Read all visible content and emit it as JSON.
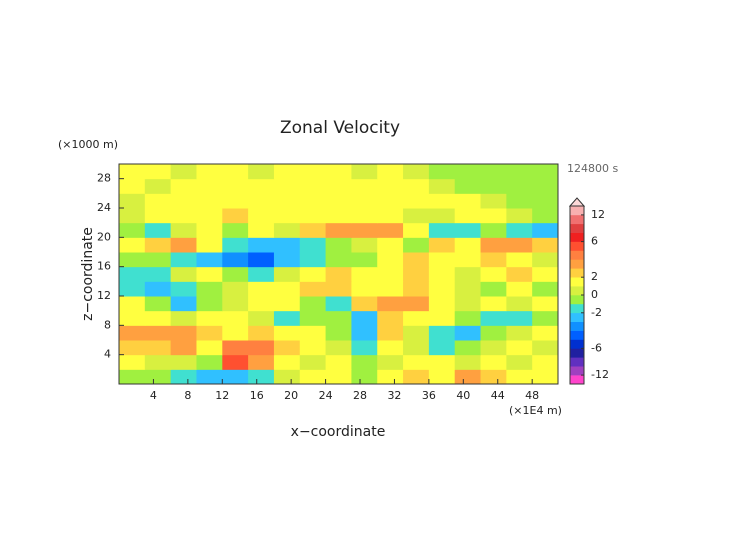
{
  "chart_data": {
    "type": "heatmap",
    "title": "Zonal Velocity",
    "y_unit": "(×1000 m)",
    "x_unit": "(×1E4 m)",
    "time_label": "124800 s",
    "xlabel": "x−coordinate",
    "ylabel": "z−coordinate",
    "xlim": [
      0,
      51
    ],
    "ylim": [
      0,
      30
    ],
    "xticks": [
      4,
      8,
      12,
      16,
      20,
      24,
      28,
      32,
      36,
      40,
      44,
      48
    ],
    "yticks": [
      4,
      8,
      12,
      16,
      20,
      24,
      28
    ],
    "x_edges": [
      0,
      3,
      6,
      9,
      12,
      15,
      18,
      21,
      24,
      27,
      30,
      33,
      36,
      39,
      42,
      45,
      48,
      51
    ],
    "z_edges": [
      0,
      2,
      4,
      6,
      8,
      10,
      12,
      14,
      16,
      18,
      20,
      22,
      24,
      26,
      28,
      30
    ],
    "values": [
      [
        -1,
        -1,
        -1.5,
        -2.5,
        -3,
        -1.5,
        0.5,
        1,
        1,
        -0.5,
        1,
        2,
        1,
        3,
        2.5,
        1,
        1
      ],
      [
        1,
        0.5,
        0.5,
        -1,
        5,
        3,
        1,
        0.5,
        1,
        -1,
        0.5,
        1,
        1,
        0.5,
        1,
        0.5,
        1
      ],
      [
        2,
        2.5,
        3,
        1.5,
        4,
        4.5,
        2,
        1,
        0.5,
        -2,
        1,
        0.5,
        -2,
        -1,
        0.5,
        1,
        0.5
      ],
      [
        3,
        3.5,
        3,
        2.5,
        1,
        2,
        1,
        1.5,
        -1,
        -3,
        2,
        0.5,
        -1.5,
        -2.5,
        -1,
        0.5,
        1
      ],
      [
        1,
        1,
        0.5,
        1,
        1,
        0.5,
        -1.5,
        -0.5,
        -0.5,
        -3,
        2.5,
        1,
        1,
        -1,
        -2,
        -1.5,
        -0.5
      ],
      [
        1,
        -1,
        -2.5,
        -1,
        0.5,
        1,
        1,
        -1,
        -1.5,
        2,
        3,
        3,
        1,
        0.5,
        1,
        0.5,
        1
      ],
      [
        -2,
        -3,
        -2,
        -1,
        0.5,
        1,
        1,
        2,
        2,
        1,
        1,
        2,
        1,
        0.5,
        -1,
        1,
        -0.5
      ],
      [
        -1.5,
        -2,
        0.5,
        1,
        -1,
        -2,
        0.5,
        1.5,
        2,
        1,
        1,
        2.5,
        1,
        0.5,
        1,
        2.5,
        1.5
      ],
      [
        -1,
        -0.5,
        -1.5,
        -2.5,
        -4,
        -5,
        -3,
        -2,
        -1,
        -0.5,
        1,
        2,
        1.5,
        1,
        2,
        1,
        0.5
      ],
      [
        1,
        2.5,
        3.5,
        1,
        -2,
        -2.5,
        -3,
        -1.5,
        -1,
        0.5,
        1,
        -1,
        2,
        1,
        3.5,
        3,
        2
      ],
      [
        -0.5,
        -1.5,
        0.5,
        1,
        -0.5,
        1,
        0.5,
        2,
        3,
        3.5,
        3,
        1,
        -1.5,
        -2,
        -1,
        -2,
        -2.5
      ],
      [
        0.5,
        1,
        1,
        1.5,
        2.5,
        1,
        1,
        1,
        1,
        1,
        1,
        0.5,
        0.5,
        1,
        1,
        0.5,
        -0.5
      ],
      [
        0.5,
        1,
        1,
        1.5,
        1,
        1,
        1.5,
        1,
        1,
        1,
        1,
        1,
        1,
        1,
        0.5,
        -0.5,
        -0.5
      ],
      [
        1,
        0.5,
        1,
        1,
        1,
        1,
        1,
        1.5,
        1,
        1,
        1,
        1,
        0.5,
        -0.5,
        -0.5,
        -0.5,
        -0.5
      ],
      [
        1,
        1,
        0.5,
        1,
        1,
        0.5,
        1,
        1,
        1,
        0.5,
        1,
        0.5,
        -0.5,
        -0.5,
        -0.5,
        -0.5,
        -0.5
      ]
    ],
    "levels": [
      -14,
      -12,
      -10,
      -8,
      -6,
      -5,
      -4,
      -3,
      -2,
      -1,
      0,
      1,
      2,
      3,
      4,
      5,
      6,
      8,
      10,
      12,
      14
    ],
    "level_colors": [
      "#ff44cc",
      "#a040c0",
      "#6030c0",
      "#2020a0",
      "#0030d0",
      "#0060ff",
      "#1090ff",
      "#30c0ff",
      "#40e0d0",
      "#a0f040",
      "#d8f040",
      "#ffff40",
      "#ffd040",
      "#ffa040",
      "#ff8040",
      "#ff5030",
      "#f02020",
      "#e04040",
      "#f07070",
      "#f8b0b0"
    ],
    "colorbar_ticks": [
      12,
      6,
      2,
      0,
      -2,
      -6,
      -12
    ]
  }
}
